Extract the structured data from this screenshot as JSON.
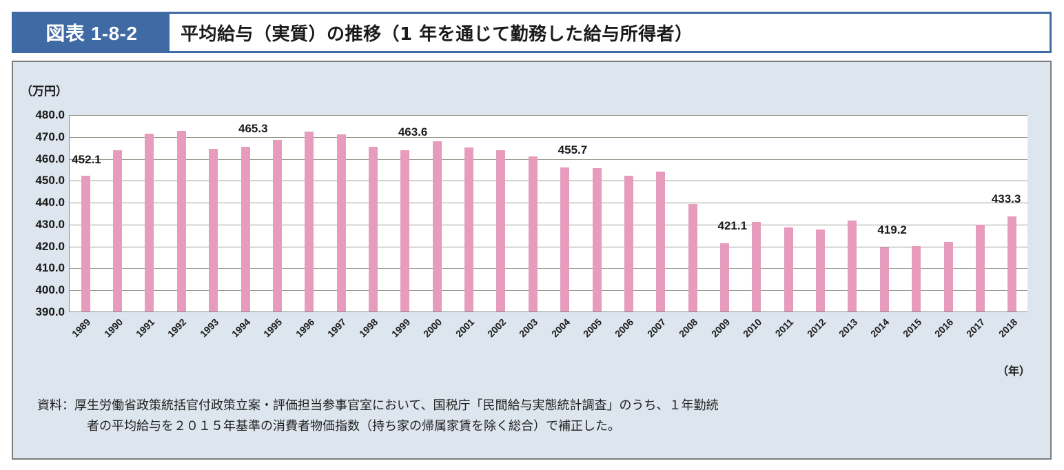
{
  "header": {
    "figure_number": "図表 1-8-2",
    "title": "平均給与（実質）の推移（1 年を通じて勤務した給与所得者）"
  },
  "chart_data": {
    "type": "bar",
    "title": "平均給与（実質）の推移（1 年を通じて勤務した給与所得者）",
    "ylabel": "（万円）",
    "xlabel": "（年）",
    "ylim": [
      390,
      480
    ],
    "yticks": [
      "390.0",
      "400.0",
      "410.0",
      "420.0",
      "430.0",
      "440.0",
      "450.0",
      "460.0",
      "470.0",
      "480.0"
    ],
    "grid": true,
    "legend": null,
    "bar_color": "#e79bbd",
    "categories": [
      "1989",
      "1990",
      "1991",
      "1992",
      "1993",
      "1994",
      "1995",
      "1996",
      "1997",
      "1998",
      "1999",
      "2000",
      "2001",
      "2002",
      "2003",
      "2004",
      "2005",
      "2006",
      "2007",
      "2008",
      "2009",
      "2010",
      "2011",
      "2012",
      "2013",
      "2014",
      "2015",
      "2016",
      "2017",
      "2018"
    ],
    "values": [
      452.1,
      463.7,
      471.1,
      472.4,
      464.2,
      465.3,
      468.4,
      472.1,
      471.0,
      465.3,
      463.6,
      467.6,
      464.8,
      463.5,
      460.9,
      455.7,
      455.4,
      452.0,
      453.8,
      439.0,
      421.1,
      430.8,
      428.3,
      427.3,
      431.5,
      419.2,
      419.9,
      421.8,
      429.7,
      433.3
    ],
    "annotations": [
      {
        "year": "1989",
        "label": "452.1"
      },
      {
        "year": "1994",
        "label": "465.3"
      },
      {
        "year": "1999",
        "label": "463.6"
      },
      {
        "year": "2004",
        "label": "455.7"
      },
      {
        "year": "2009",
        "label": "421.1"
      },
      {
        "year": "2014",
        "label": "419.2"
      },
      {
        "year": "2018",
        "label": "433.3"
      }
    ]
  },
  "source": {
    "line1": "資料：厚生労働省政策統括官付政策立案・評価担当参事官室において、国税庁「民間給与実態統計調査」のうち、１年勤続",
    "line2": "者の平均給与を２０１５年基準の消費者物価指数（持ち家の帰属家賃を除く総合）で補正した。"
  }
}
